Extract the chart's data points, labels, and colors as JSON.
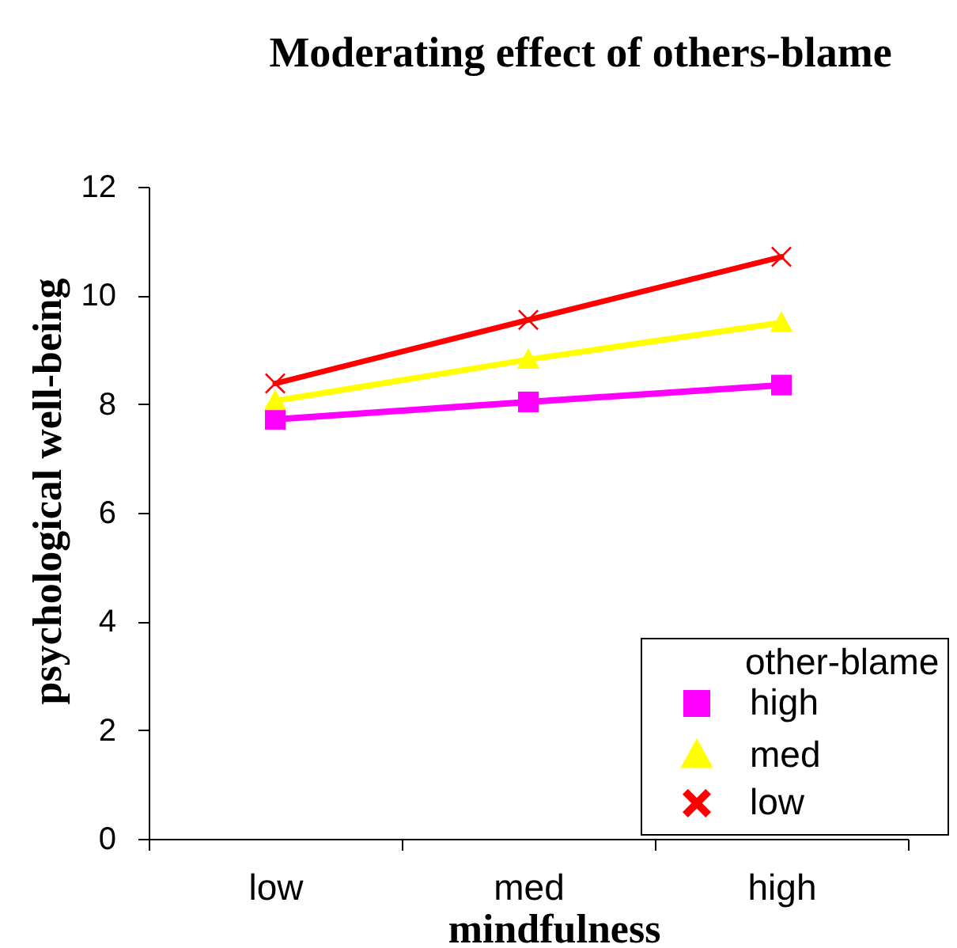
{
  "chart_data": {
    "type": "line",
    "title": "Moderating effect of others-blame",
    "xlabel": "mindfulness",
    "ylabel": "psychological well-being",
    "legend_title": "other-blame",
    "legend": "bottom right",
    "categories": [
      "low",
      "med",
      "high"
    ],
    "series": [
      {
        "name": "high",
        "color": "#ff00ff",
        "marker": "square",
        "values": [
          7.72,
          8.04,
          8.35
        ]
      },
      {
        "name": "med",
        "color": "#ffff00",
        "marker": "triangle",
        "values": [
          8.06,
          8.82,
          9.5
        ]
      },
      {
        "name": "low",
        "color": "#ff0000",
        "marker": "cross",
        "values": [
          8.38,
          9.55,
          10.71
        ]
      }
    ],
    "ylim": [
      0,
      12
    ],
    "yticks": [
      0,
      2,
      4,
      6,
      8,
      10,
      12
    ]
  }
}
